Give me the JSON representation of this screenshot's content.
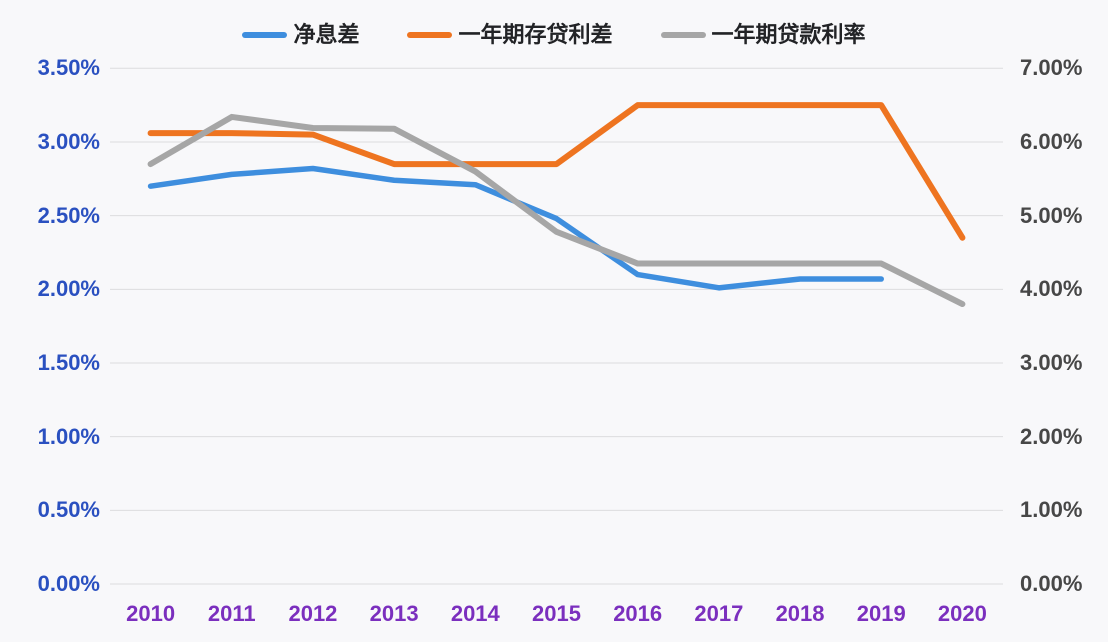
{
  "chart_data": {
    "type": "line",
    "title": "",
    "categories": [
      "2010",
      "2011",
      "2012",
      "2013",
      "2014",
      "2015",
      "2016",
      "2017",
      "2018",
      "2019",
      "2020"
    ],
    "series": [
      {
        "name": "净息差",
        "axis": "left",
        "color": "#3e8ede",
        "width": 5.5,
        "values": [
          2.7,
          2.78,
          2.82,
          2.74,
          2.71,
          2.48,
          2.1,
          2.01,
          2.07,
          2.07,
          null
        ]
      },
      {
        "name": "一年期存贷利差",
        "axis": "left",
        "color": "#ee7420",
        "width": 6,
        "values": [
          3.06,
          3.06,
          3.05,
          2.85,
          2.85,
          2.85,
          3.25,
          3.25,
          3.25,
          3.25,
          2.35
        ]
      },
      {
        "name": "一年期贷款利率",
        "axis": "right",
        "color": "#a6a6a6",
        "width": 6,
        "values": [
          5.7,
          6.34,
          6.19,
          6.18,
          5.6,
          4.78,
          4.35,
          4.35,
          4.35,
          4.35,
          3.8
        ]
      }
    ],
    "left_axis": {
      "min": 0,
      "max": 3.5,
      "tick_labels": [
        "3.50%",
        "3.00%",
        "2.50%",
        "2.00%",
        "1.50%",
        "1.00%",
        "0.50%",
        "0.00%"
      ],
      "label_color": "#2a50c0"
    },
    "right_axis": {
      "min": 0,
      "max": 7.0,
      "tick_labels": [
        "7.00%",
        "6.00%",
        "5.00%",
        "4.00%",
        "3.00%",
        "2.00%",
        "1.00%",
        "0.00%"
      ],
      "label_color": "#474747"
    },
    "x_axis": {
      "label_color": "#7b2fbe"
    },
    "grid": true,
    "gridline_color": "#dcdcde",
    "background_color": "#f8f8fa",
    "legend_position": "top"
  }
}
